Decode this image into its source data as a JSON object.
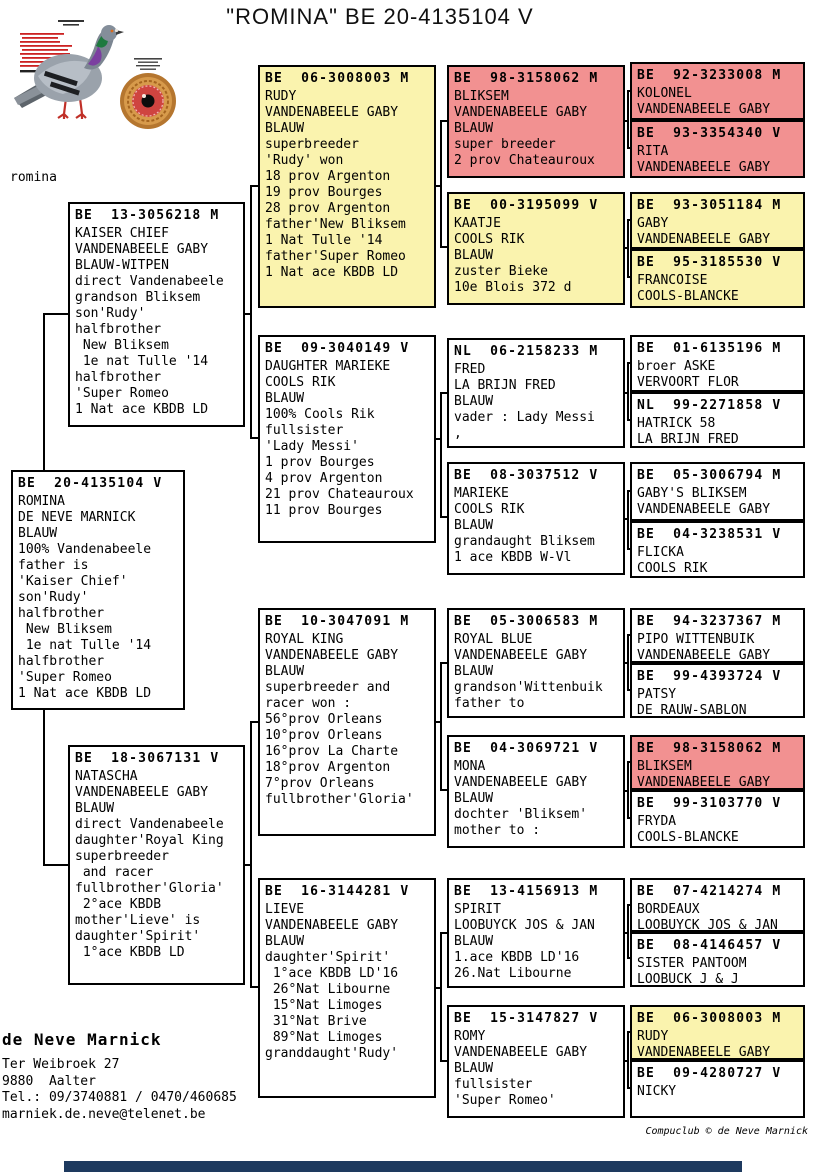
{
  "title": "\"ROMINA\"  BE  20-4135104 V",
  "photo_label": "romina",
  "credit": "Compuclub © de Neve Marnick",
  "breeder": {
    "name": "de Neve Marnick",
    "address_line1": "Ter Weibroek 27",
    "address_line2": "9880  Aalter",
    "phone": "Tel.: 09/3740881 / 0470/460685",
    "email": "marniek.de.neve@telenet.be"
  },
  "colors": {
    "white": "#FFFFFF",
    "yellow": "#FAF3AE",
    "pink": "#F29191",
    "footer_bar": "#1E3A5F",
    "annotation_red": "#CC2222"
  },
  "boxes": {
    "romina": {
      "ring": "BE  20-4135104 V",
      "color": "white",
      "lines": [
        "ROMINA",
        "DE NEVE MARNICK",
        "BLAUW",
        "100% Vandenabeele",
        "father is",
        "'Kaiser Chief'",
        "son'Rudy'",
        "halfbrother",
        " New Bliksem",
        " 1e nat Tulle '14",
        "halfbrother",
        "'Super Romeo",
        "1 Nat ace KBDB LD"
      ]
    },
    "kaiser_chief": {
      "ring": "BE  13-3056218 M",
      "color": "white",
      "lines": [
        "KAISER CHIEF",
        "VANDENABEELE GABY",
        "BLAUW-WITPEN",
        "direct Vandenabeele",
        "grandson Bliksem",
        "son'Rudy'",
        "halfbrother",
        " New Bliksem",
        " 1e nat Tulle '14",
        "halfbrother",
        "'Super Romeo",
        "1 Nat ace KBDB LD"
      ]
    },
    "natascha": {
      "ring": "BE  18-3067131 V",
      "color": "white",
      "lines": [
        "NATASCHA",
        "VANDENABEELE GABY",
        "BLAUW",
        "direct Vandenabeele",
        "daughter'Royal King",
        "superbreeder",
        " and racer",
        "fullbrother'Gloria'",
        " 2°ace KBDB",
        "mother'Lieve' is",
        "daughter'Spirit'",
        " 1°ace KBDB LD"
      ]
    },
    "rudy": {
      "ring": "BE  06-3008003 M",
      "color": "yellow",
      "lines": [
        "RUDY",
        "VANDENABEELE GABY",
        "BLAUW",
        "superbreeder",
        "'Rudy' won",
        "18 prov Argenton",
        "19 prov Bourges",
        "28 prov Argenton",
        "father'New Bliksem",
        "1 Nat Tulle '14",
        "father'Super Romeo",
        "1 Nat ace KBDB LD"
      ]
    },
    "daughter_marieke": {
      "ring": "BE  09-3040149 V",
      "color": "white",
      "lines": [
        "DAUGHTER MARIEKE",
        "COOLS RIK",
        "BLAUW",
        "100% Cools Rik",
        "fullsister",
        "'Lady Messi'",
        "1 prov Bourges",
        "4 prov Argenton",
        "21 prov Chateauroux",
        "11 prov Bourges"
      ]
    },
    "royal_king": {
      "ring": "BE  10-3047091 M",
      "color": "white",
      "lines": [
        "ROYAL KING",
        "VANDENABEELE GABY",
        "BLAUW",
        "superbreeder and",
        "racer won :",
        "56°prov Orleans",
        "10°prov Orleans",
        "16°prov La Charte",
        "18°prov Argenton",
        "7°prov Orleans",
        "fullbrother'Gloria'"
      ]
    },
    "lieve": {
      "ring": "BE  16-3144281 V",
      "color": "white",
      "lines": [
        "LIEVE",
        "VANDENABEELE GABY",
        "BLAUW",
        "daughter'Spirit'",
        " 1°ace KBDB LD'16",
        " 26°Nat Libourne",
        " 15°Nat Limoges",
        " 31°Nat Brive",
        " 89°Nat Limoges",
        "granddaught'Rudy'"
      ]
    },
    "bliksem": {
      "ring": "BE  98-3158062 M",
      "color": "pink",
      "lines": [
        "BLIKSEM",
        "VANDENABEELE GABY",
        "BLAUW",
        "super breeder",
        "2 prov Chateauroux"
      ]
    },
    "kaatje": {
      "ring": "BE  00-3195099 V",
      "color": "yellow",
      "lines": [
        "KAATJE",
        "COOLS RIK",
        "BLAUW",
        "zuster Bieke",
        "10e Blois 372 d"
      ]
    },
    "fred": {
      "ring": "NL  06-2158233 M",
      "color": "white",
      "lines": [
        "FRED",
        "LA BRIJN FRED",
        "BLAUW",
        "vader : Lady Messi",
        ","
      ]
    },
    "marieke": {
      "ring": "BE  08-3037512 V",
      "color": "white",
      "lines": [
        "MARIEKE",
        "COOLS RIK",
        "BLAUW",
        "grandaught Bliksem",
        "1 ace KBDB W-Vl"
      ]
    },
    "royal_blue": {
      "ring": "BE  05-3006583 M",
      "color": "white",
      "lines": [
        "ROYAL BLUE",
        "VANDENABEELE GABY",
        "BLAUW",
        "grandson'Wittenbuik",
        "father to"
      ]
    },
    "mona": {
      "ring": "BE  04-3069721 V",
      "color": "white",
      "lines": [
        "MONA",
        "VANDENABEELE GABY",
        "BLAUW",
        "dochter 'Bliksem'",
        "mother to :"
      ]
    },
    "spirit": {
      "ring": "BE  13-4156913 M",
      "color": "white",
      "lines": [
        "SPIRIT",
        "LOOBUYCK JOS & JAN",
        "BLAUW",
        "1.ace KBDB LD'16",
        "26.Nat Libourne"
      ]
    },
    "romy": {
      "ring": "BE  15-3147827 V",
      "color": "white",
      "lines": [
        "ROMY",
        "VANDENABEELE GABY",
        "BLAUW",
        "fullsister",
        "'Super Romeo'"
      ]
    },
    "kolonel": {
      "ring": "BE  92-3233008 M",
      "color": "pink",
      "lines": [
        "KOLONEL",
        "VANDENABEELE GABY"
      ]
    },
    "rita": {
      "ring": "BE  93-3354340 V",
      "color": "pink",
      "lines": [
        "RITA",
        "VANDENABEELE GABY"
      ]
    },
    "gaby": {
      "ring": "BE  93-3051184 M",
      "color": "yellow",
      "lines": [
        "GABY",
        "VANDENABEELE GABY"
      ]
    },
    "francoise": {
      "ring": "BE  95-3185530 V",
      "color": "yellow",
      "lines": [
        "FRANCOISE",
        "COOLS-BLANCKE"
      ]
    },
    "broer_aske": {
      "ring": "BE  01-6135196 M",
      "color": "white",
      "lines": [
        "broer ASKE",
        "VERVOORT FLOR"
      ]
    },
    "hatrick_58": {
      "ring": "NL  99-2271858 V",
      "color": "white",
      "lines": [
        "HATRICK 58",
        "LA BRIJN FRED"
      ]
    },
    "gabys_bliksem": {
      "ring": "BE  05-3006794 M",
      "color": "white",
      "lines": [
        "GABY'S BLIKSEM",
        "VANDENABEELE GABY"
      ]
    },
    "flicka": {
      "ring": "BE  04-3238531 V",
      "color": "white",
      "lines": [
        "FLICKA",
        "COOLS RIK"
      ]
    },
    "pipo_wittenbuik": {
      "ring": "BE  94-3237367 M",
      "color": "white",
      "lines": [
        "PIPO WITTENBUIK",
        "VANDENABEELE GABY"
      ]
    },
    "patsy": {
      "ring": "BE  99-4393724 V",
      "color": "white",
      "lines": [
        "PATSY",
        "DE RAUW-SABLON"
      ]
    },
    "bliksem_2": {
      "ring": "BE  98-3158062 M",
      "color": "pink",
      "lines": [
        "BLIKSEM",
        "VANDENABEELE GABY"
      ]
    },
    "fryda": {
      "ring": "BE  99-3103770 V",
      "color": "white",
      "lines": [
        "FRYDA",
        "COOLS-BLANCKE"
      ]
    },
    "bordeaux": {
      "ring": "BE  07-4214274 M",
      "color": "white",
      "lines": [
        "BORDEAUX",
        "LOOBUYCK JOS & JAN"
      ]
    },
    "sister_pantoom": {
      "ring": "BE  08-4146457 V",
      "color": "white",
      "lines": [
        "SISTER PANTOOM",
        "LOOBUCK J & J"
      ]
    },
    "rudy_2": {
      "ring": "BE  06-3008003 M",
      "color": "yellow",
      "lines": [
        "RUDY",
        "VANDENABEELE GABY"
      ]
    },
    "nicky": {
      "ring": "BE  09-4280727 V",
      "color": "white",
      "lines": [
        "NICKY"
      ]
    }
  }
}
